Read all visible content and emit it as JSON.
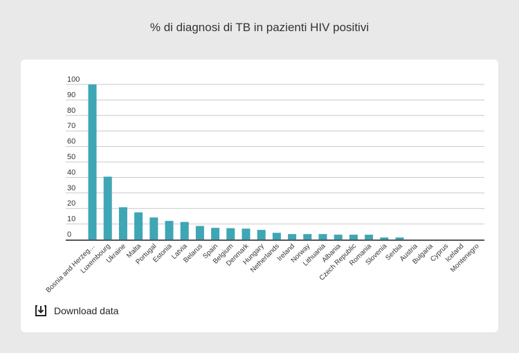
{
  "page": {
    "title": "% di diagnosi di TB in pazienti HIV positivi"
  },
  "download": {
    "label": "Download data",
    "icon": "download-icon"
  },
  "colors": {
    "bar": "#3ea6b5",
    "grid": "#c8c8c8",
    "axis": "#555555",
    "text": "#333333",
    "background": "#e8e9e8",
    "card": "#ffffff"
  },
  "chart_data": {
    "type": "bar",
    "title": "% di diagnosi di TB in pazienti HIV positivi",
    "xlabel": "",
    "ylabel": "",
    "ylim": [
      0,
      100
    ],
    "yticks": [
      0,
      10,
      20,
      30,
      40,
      50,
      60,
      70,
      80,
      90,
      100
    ],
    "grid": true,
    "categories": [
      "Bosnia and Herzeg…",
      "Luxembourg",
      "Ukraine",
      "Malta",
      "Portugal",
      "Estonia",
      "Latvia",
      "Belarus",
      "Spain",
      "Belgium",
      "Denmark",
      "Hungary",
      "Netherlands",
      "Ireland",
      "Norway",
      "Lithuania",
      "Albania",
      "Czech Republic",
      "Romania",
      "Slovenia",
      "Serbia",
      "Austria",
      "Bulgaria",
      "Cyprus",
      "Iceland",
      "Montenegro"
    ],
    "values": [
      100,
      40.5,
      20.8,
      17.5,
      14.2,
      12,
      11.3,
      8.7,
      7.5,
      7.3,
      7,
      6.2,
      4.3,
      3.5,
      3.5,
      3.5,
      3.1,
      3.1,
      3.1,
      1.3,
      1.3,
      0,
      0,
      0,
      0,
      0
    ]
  }
}
